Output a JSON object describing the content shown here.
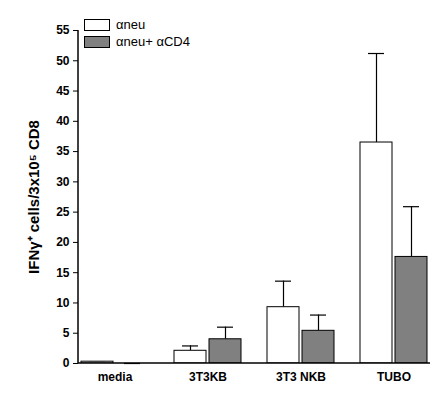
{
  "chart_data": {
    "type": "bar",
    "y_label": "IFNγ⁺ cells/3x10⁵ CD8",
    "categories": [
      "media",
      "3T3KB",
      "3T3 NKB",
      "TUBO"
    ],
    "series": [
      {
        "name": "αneu",
        "color": "#ffffff",
        "values": [
          0.3,
          2.1,
          9.3,
          36.5
        ],
        "errors": [
          0,
          0.8,
          4.3,
          14.7
        ]
      },
      {
        "name": "αneu+ αCD4",
        "color": "#808080",
        "values": [
          0,
          4.0,
          5.4,
          17.6
        ],
        "errors": [
          0,
          2.0,
          2.6,
          8.3
        ]
      }
    ],
    "ylim": [
      0,
      55
    ],
    "yticks": [
      0,
      5,
      10,
      15,
      20,
      25,
      30,
      35,
      40,
      45,
      50,
      55
    ],
    "legend": "top-left"
  }
}
